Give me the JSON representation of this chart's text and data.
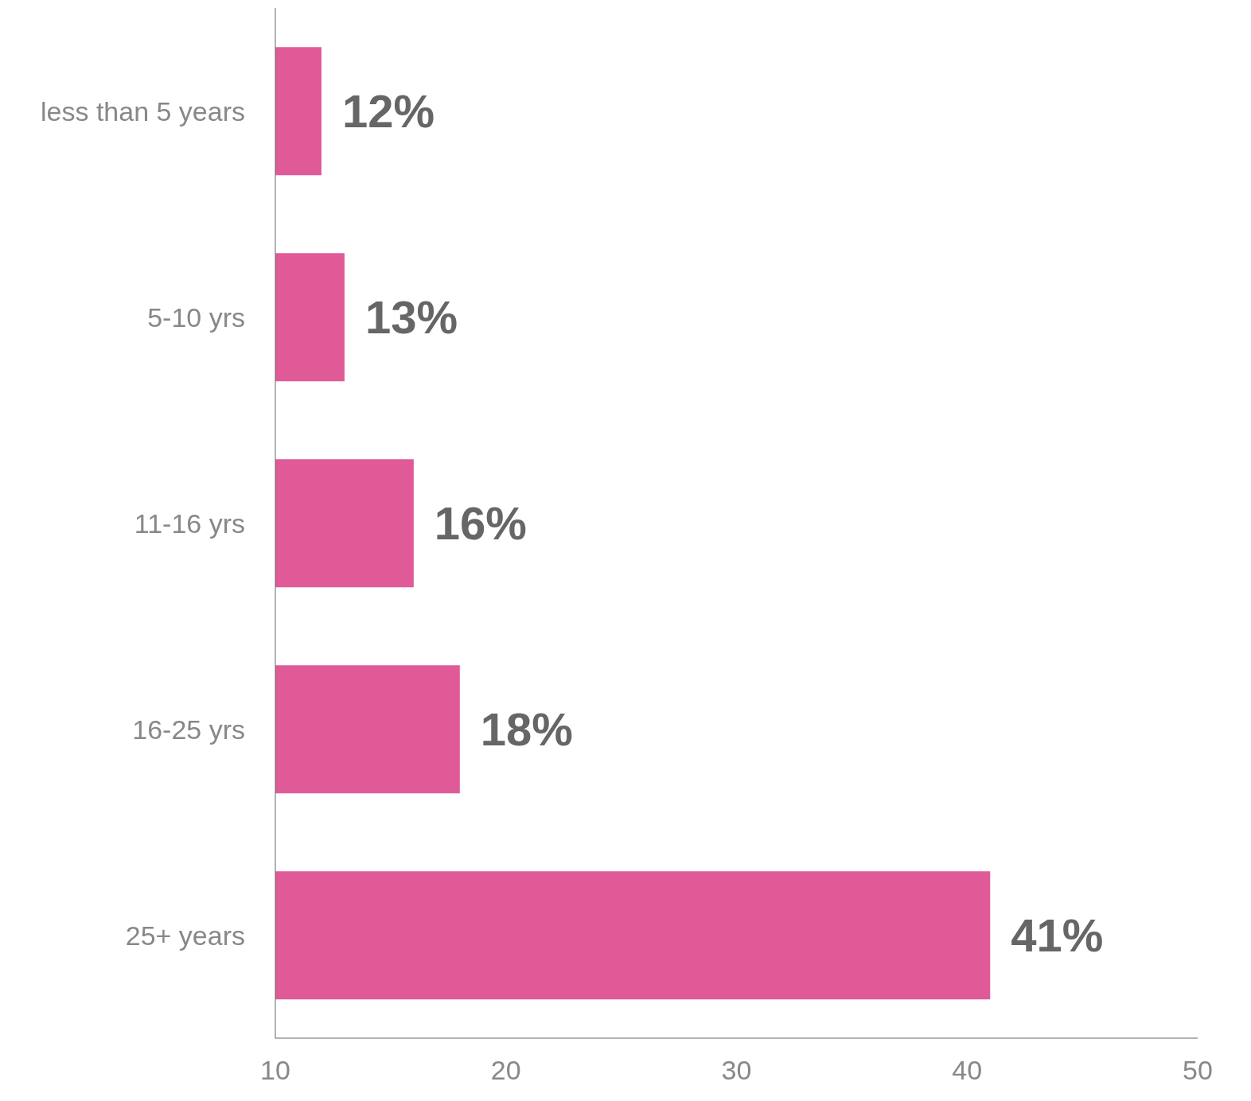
{
  "chart_data": {
    "type": "bar",
    "orientation": "horizontal",
    "categories": [
      "less than 5 years",
      "5-10 yrs",
      "11-16 yrs",
      "16-25 yrs",
      "25+ years"
    ],
    "values": [
      12,
      13,
      16,
      18,
      41
    ],
    "value_labels": [
      "12%",
      "13%",
      "16%",
      "18%",
      "41%"
    ],
    "color": "#e05a98",
    "xlim": [
      10,
      50
    ],
    "xticks": [
      10,
      20,
      30,
      40,
      50
    ],
    "grid": false,
    "legend": false
  }
}
